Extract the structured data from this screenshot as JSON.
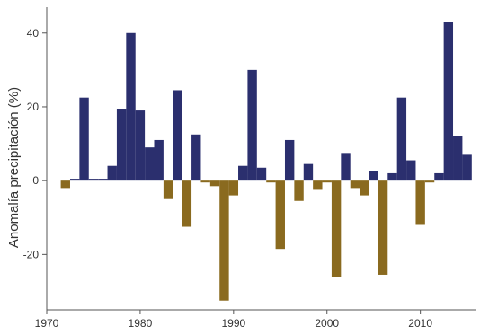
{
  "chart_data": {
    "type": "bar",
    "title": "",
    "xlabel": "",
    "ylabel": "Anomalía precipitación (%)",
    "xlim": [
      1970,
      2016
    ],
    "ylim": [
      -35,
      47
    ],
    "grid": false,
    "x_ticks": [
      1970,
      1980,
      1990,
      2000,
      2010
    ],
    "y_ticks": [
      -20,
      0,
      20,
      40
    ],
    "y_tick_labels": [
      "-20",
      "0",
      "20",
      "40"
    ],
    "colors": {
      "positive": "#2b2f6e",
      "negative": "#8a6a1f",
      "axis": "#555555"
    },
    "series": [
      {
        "x": [
          1972,
          1973,
          1974,
          1975,
          1976,
          1977,
          1978,
          1979,
          1980,
          1981,
          1982,
          1983,
          1984,
          1985,
          1986,
          1987,
          1988,
          1989,
          1990,
          1991,
          1992,
          1993,
          1994,
          1995,
          1996,
          1997,
          1998,
          1999,
          2000,
          2001,
          2002,
          2003,
          2004,
          2005,
          2006,
          2007,
          2008,
          2009,
          2010,
          2011,
          2012,
          2013,
          2014,
          2015
        ],
        "values": [
          -2,
          0.5,
          22.5,
          0.5,
          0.5,
          4,
          19.5,
          40,
          19,
          9,
          11,
          -5,
          24.5,
          -12.5,
          12.5,
          -0.5,
          -1.5,
          -32.5,
          -4,
          4,
          30,
          3.5,
          -0.5,
          -18.5,
          11,
          -5.5,
          4.5,
          -2.5,
          -0.5,
          -26,
          7.5,
          -2,
          -4,
          2.5,
          -25.5,
          2,
          22.5,
          5.5,
          -12,
          -0.5,
          2,
          43,
          12,
          7
        ]
      }
    ]
  }
}
